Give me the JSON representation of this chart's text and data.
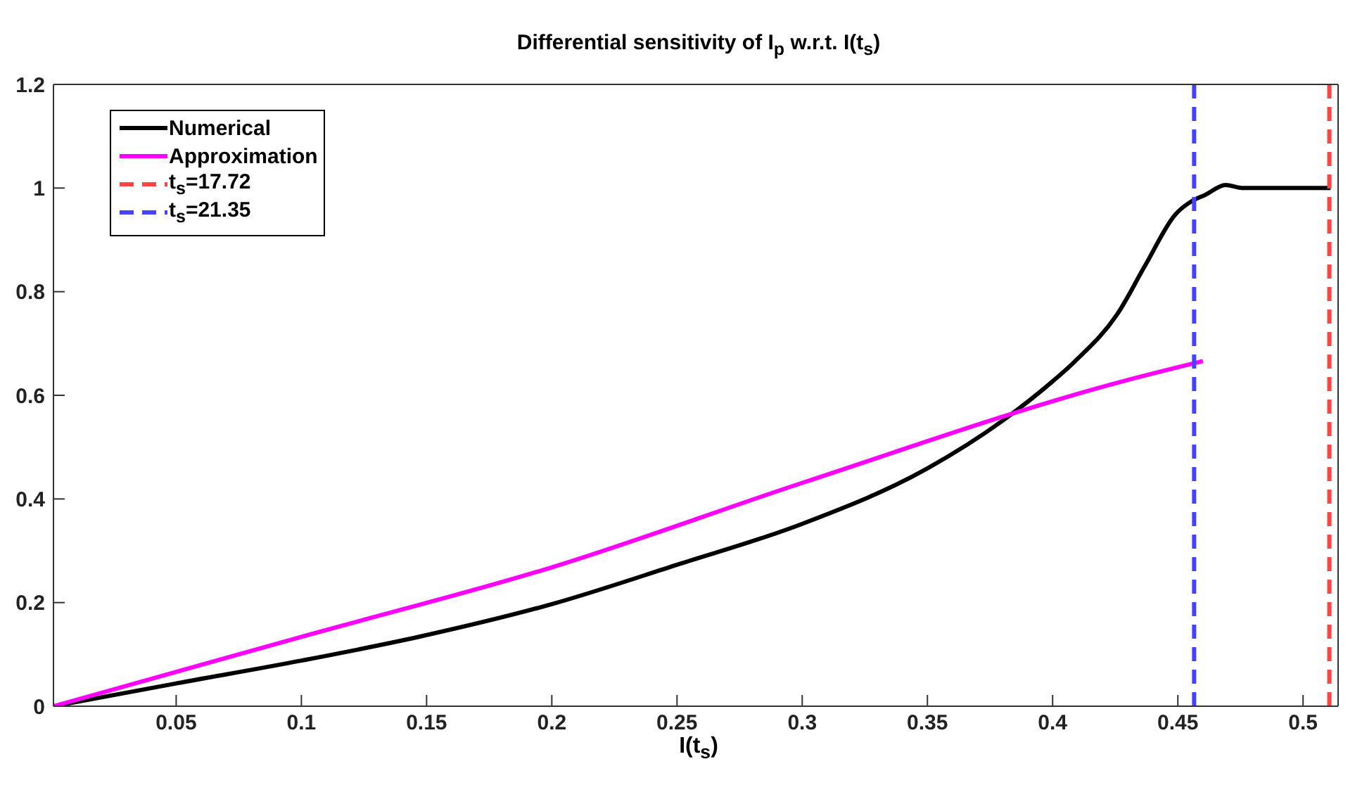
{
  "chart_data": {
    "type": "line",
    "title": "Differential sensitivity of I$_{p}$ w.r.t. I(t$_{s}$)",
    "xlabel": "I(t$_{s}$)",
    "xlim": [
      0.001,
      0.514
    ],
    "ylim": [
      0,
      1.2
    ],
    "xticks": [
      0.05,
      0.1,
      0.15,
      0.2,
      0.25,
      0.3,
      0.35,
      0.4,
      0.45,
      0.5
    ],
    "yticks": [
      0,
      0.2,
      0.4,
      0.6,
      0.8,
      1,
      1.2
    ],
    "legend": "top left",
    "marker": "none",
    "line_style": "solid",
    "series": [
      {
        "name": "Numerical",
        "color": "#000000",
        "x": [
          0.001,
          0.05,
          0.1,
          0.147,
          0.2,
          0.25,
          0.3,
          0.35,
          0.38,
          0.4,
          0.409,
          0.426,
          0.437,
          0.449,
          0.456,
          0.461,
          0.469,
          0.476,
          0.511
        ],
        "values": [
          0,
          0.044,
          0.088,
          0.134,
          0.197,
          0.273,
          0.352,
          0.459,
          0.551,
          0.627,
          0.666,
          0.758,
          0.851,
          0.949,
          0.976,
          0.987,
          1.006,
          1.0,
          1.0
        ]
      },
      {
        "name": "Approximation",
        "color": "#ff00ff",
        "x": [
          0.001,
          0.1,
          0.2,
          0.3,
          0.428,
          0.46
        ],
        "values": [
          0,
          0.134,
          0.268,
          0.431,
          0.627,
          0.666
        ]
      },
      {
        "name": "t$_{s}$=17.72",
        "color": "#ff4444",
        "line_style": "dashed",
        "x": [
          0.5105,
          0.5105
        ],
        "values": [
          0,
          1.2
        ]
      },
      {
        "name": "t$_{s}$=21.35",
        "color": "#4444ff",
        "line_style": "dashed",
        "x": [
          0.4565,
          0.4565
        ],
        "values": [
          0,
          1.2
        ]
      }
    ]
  }
}
